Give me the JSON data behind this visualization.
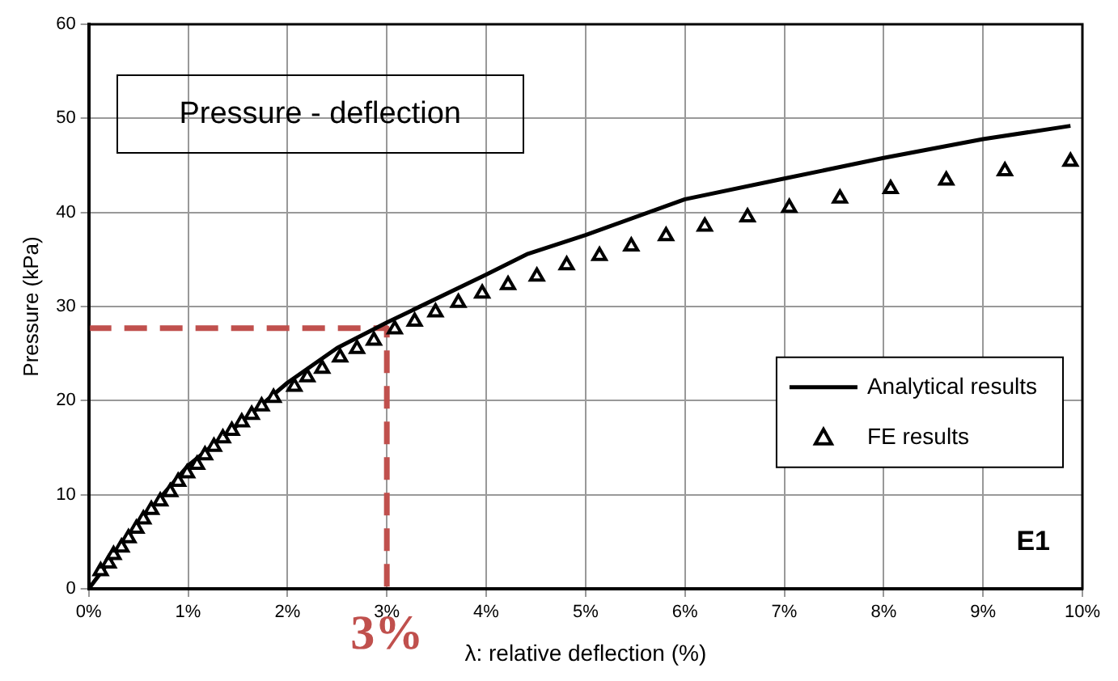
{
  "chart_data": {
    "type": "line",
    "title": "Pressure - deflection",
    "xlabel": "λ: relative deflection (%)",
    "ylabel": "Pressure (kPa)",
    "xlim": [
      0,
      10
    ],
    "ylim": [
      0,
      60
    ],
    "xticks": [
      {
        "value": 0,
        "label": "0%"
      },
      {
        "value": 1,
        "label": "1%"
      },
      {
        "value": 2,
        "label": "2%"
      },
      {
        "value": 3,
        "label": "3%"
      },
      {
        "value": 4,
        "label": "4%"
      },
      {
        "value": 5,
        "label": "5%"
      },
      {
        "value": 6,
        "label": "6%"
      },
      {
        "value": 7,
        "label": "7%"
      },
      {
        "value": 8,
        "label": "8%"
      },
      {
        "value": 9,
        "label": "9%"
      },
      {
        "value": 10,
        "label": "10%"
      }
    ],
    "yticks": [
      0,
      10,
      20,
      30,
      40,
      50,
      60
    ],
    "grid": true,
    "legend": "right",
    "series": [
      {
        "name": "Analytical results",
        "color": "#000000",
        "marker": "none",
        "line_style": "solid",
        "x": [
          0,
          0.5,
          1,
          1.5,
          2,
          2.5,
          3,
          4,
          4.42,
          5,
          6,
          7,
          8,
          9,
          9.88
        ],
        "values": [
          0,
          7.0,
          13.1,
          17.4,
          21.9,
          25.6,
          28.3,
          33.4,
          35.6,
          37.6,
          41.4,
          43.6,
          45.8,
          47.8,
          49.2
        ]
      },
      {
        "name": "FE results",
        "type": "scatter",
        "color": "#000000",
        "marker": "triangle",
        "x": [
          0.12,
          0.2,
          0.25,
          0.33,
          0.4,
          0.48,
          0.55,
          0.63,
          0.72,
          0.82,
          0.9,
          0.99,
          1.09,
          1.17,
          1.26,
          1.35,
          1.44,
          1.54,
          1.64,
          1.74,
          1.86,
          2.07,
          2.2,
          2.35,
          2.53,
          2.7,
          2.87,
          3.08,
          3.28,
          3.49,
          3.72,
          3.96,
          4.22,
          4.51,
          4.81,
          5.14,
          5.46,
          5.81,
          6.2,
          6.63,
          7.05,
          7.56,
          8.07,
          8.63,
          9.22,
          9.88
        ],
        "values": [
          1.9,
          2.7,
          3.6,
          4.4,
          5.4,
          6.4,
          7.4,
          8.4,
          9.3,
          10.3,
          11.4,
          12.3,
          13.2,
          14.2,
          15.1,
          16.0,
          16.8,
          17.7,
          18.5,
          19.4,
          20.3,
          21.5,
          22.5,
          23.4,
          24.6,
          25.5,
          26.4,
          27.6,
          28.4,
          29.4,
          30.4,
          31.4,
          32.3,
          33.2,
          34.4,
          35.4,
          36.4,
          37.5,
          38.5,
          39.5,
          40.5,
          41.5,
          42.5,
          43.4,
          44.4,
          45.4
        ]
      },
      {
        "color": "#c0504d",
        "marker": "none",
        "line_style": "dashed",
        "x": [
          0,
          3,
          3
        ],
        "values": [
          27.7,
          27.7,
          0
        ]
      }
    ],
    "annotations": [
      "E1",
      {
        "text": "3%",
        "x": 3,
        "y": 0
      }
    ]
  }
}
